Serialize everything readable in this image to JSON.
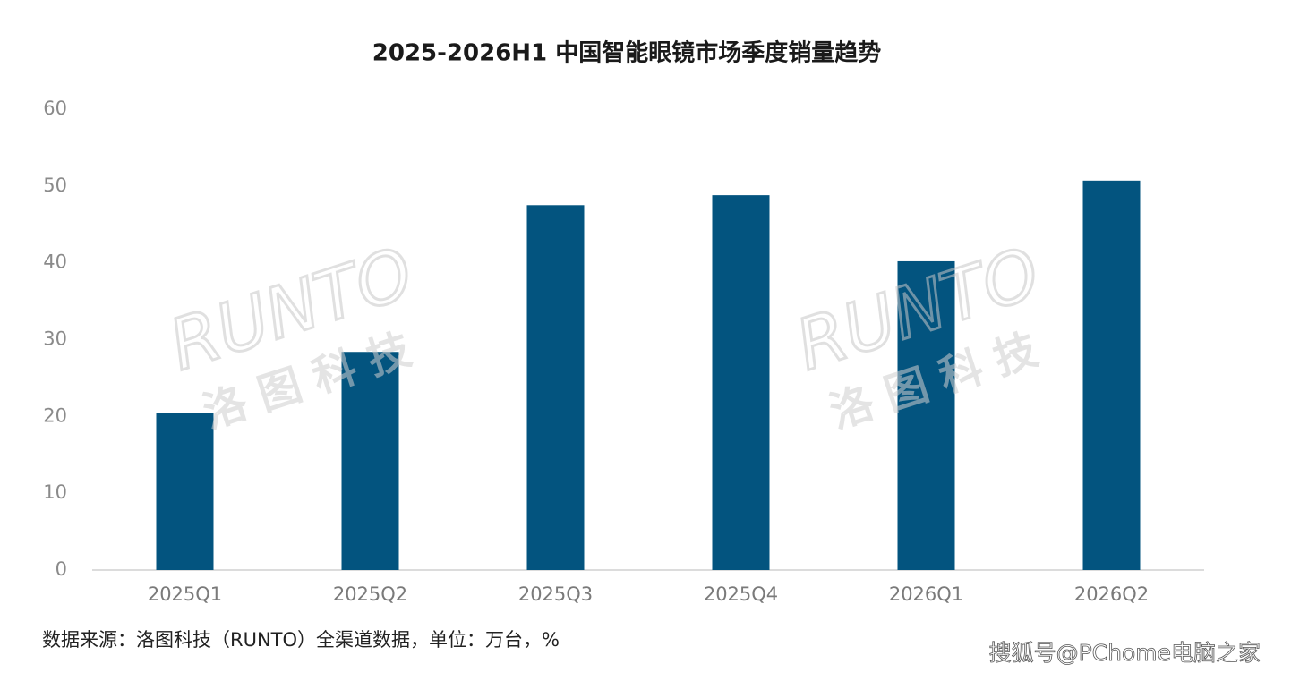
{
  "chart_data": {
    "type": "bar",
    "title": "2025-2026H1 中国智能眼镜市场季度销量趋势",
    "categories": [
      "2025Q1",
      "2025Q2",
      "2025Q3",
      "2025Q4",
      "2026Q1",
      "2026Q2"
    ],
    "values": [
      20.4,
      28.4,
      47.5,
      48.8,
      40.2,
      50.7
    ],
    "color": "#03547f",
    "ylim": [
      0,
      60
    ],
    "yticks": [
      0,
      10,
      20,
      30,
      40,
      50,
      60
    ],
    "grid": false,
    "source": "数据来源：洛图科技（RUNTO）全渠道数据，单位：万台，%",
    "credit": "搜狐号@PChome电脑之家",
    "watermark": {
      "logo": "RUNTO",
      "text": "洛图科技"
    }
  }
}
